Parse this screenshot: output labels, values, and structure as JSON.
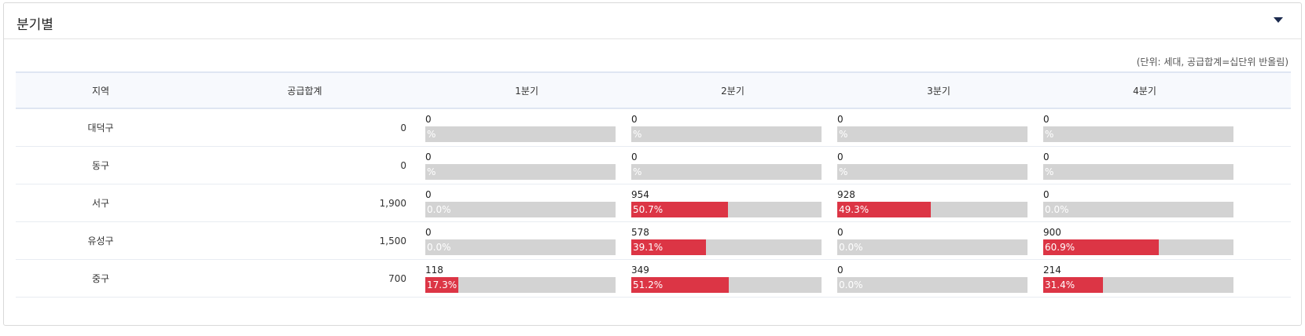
{
  "panel": {
    "title": "분기별",
    "toggle_icon": "caret-down-icon",
    "unit_note": "(단위: 세대, 공급합계=십단위 반올림)"
  },
  "table": {
    "headers": [
      "지역",
      "공급합계",
      "1분기",
      "2분기",
      "3분기",
      "4분기"
    ],
    "rows": [
      {
        "region": "대덕구",
        "total": "0",
        "quarters": [
          {
            "value": "0",
            "pct_label": "%",
            "pct": 0
          },
          {
            "value": "0",
            "pct_label": "%",
            "pct": 0
          },
          {
            "value": "0",
            "pct_label": "%",
            "pct": 0
          },
          {
            "value": "0",
            "pct_label": "%",
            "pct": 0
          }
        ]
      },
      {
        "region": "동구",
        "total": "0",
        "quarters": [
          {
            "value": "0",
            "pct_label": "%",
            "pct": 0
          },
          {
            "value": "0",
            "pct_label": "%",
            "pct": 0
          },
          {
            "value": "0",
            "pct_label": "%",
            "pct": 0
          },
          {
            "value": "0",
            "pct_label": "%",
            "pct": 0
          }
        ]
      },
      {
        "region": "서구",
        "total": "1,900",
        "quarters": [
          {
            "value": "0",
            "pct_label": "0.0%",
            "pct": 0
          },
          {
            "value": "954",
            "pct_label": "50.7%",
            "pct": 50.7
          },
          {
            "value": "928",
            "pct_label": "49.3%",
            "pct": 49.3
          },
          {
            "value": "0",
            "pct_label": "0.0%",
            "pct": 0
          }
        ]
      },
      {
        "region": "유성구",
        "total": "1,500",
        "quarters": [
          {
            "value": "0",
            "pct_label": "0.0%",
            "pct": 0
          },
          {
            "value": "578",
            "pct_label": "39.1%",
            "pct": 39.1
          },
          {
            "value": "0",
            "pct_label": "0.0%",
            "pct": 0
          },
          {
            "value": "900",
            "pct_label": "60.9%",
            "pct": 60.9
          }
        ]
      },
      {
        "region": "중구",
        "total": "700",
        "quarters": [
          {
            "value": "118",
            "pct_label": "17.3%",
            "pct": 17.3
          },
          {
            "value": "349",
            "pct_label": "51.2%",
            "pct": 51.2
          },
          {
            "value": "0",
            "pct_label": "0.0%",
            "pct": 0
          },
          {
            "value": "214",
            "pct_label": "31.4%",
            "pct": 31.4
          }
        ]
      }
    ]
  },
  "colors": {
    "bar_fill": "#dc3545",
    "bar_track": "#d3d3d3",
    "header_bg": "#f7f9fd"
  }
}
